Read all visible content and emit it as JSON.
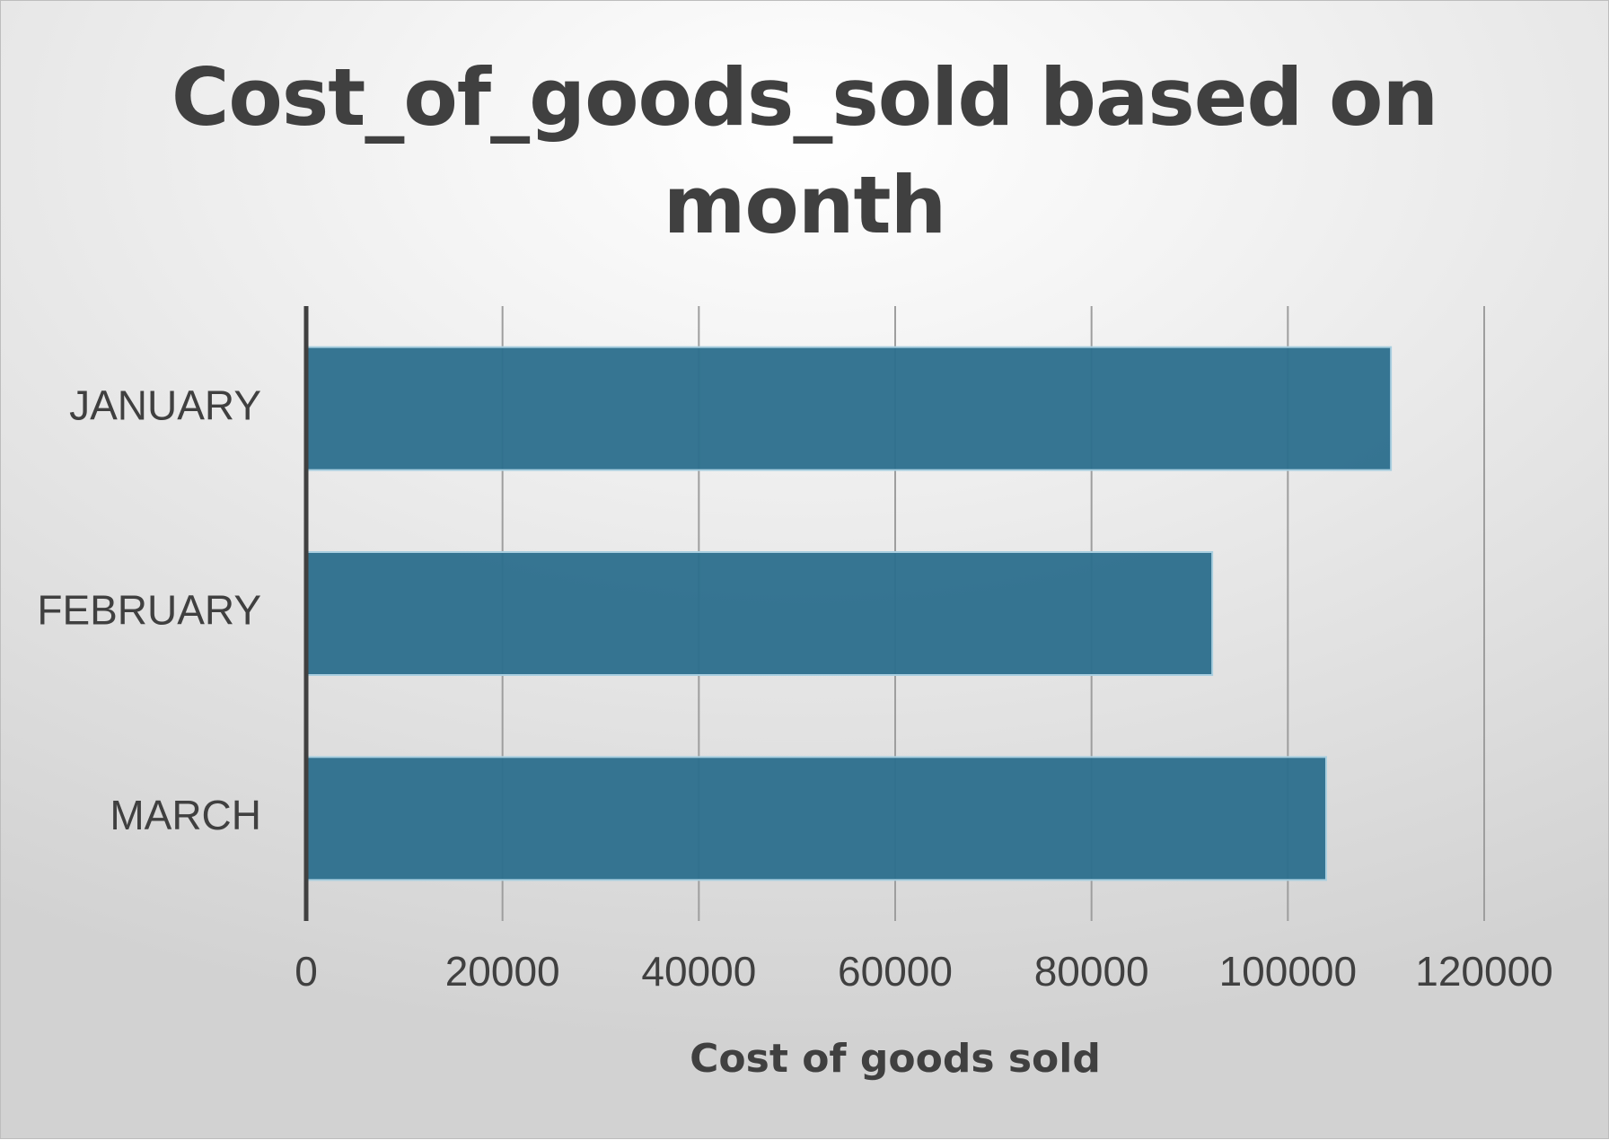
{
  "chart_data": {
    "type": "bar",
    "orientation": "horizontal",
    "title": "Cost_of_goods_sold based on month",
    "xlabel": "Cost of goods sold",
    "ylabel": "",
    "categories": [
      "JANUARY",
      "FEBRUARY",
      "MARCH"
    ],
    "values": [
      110500,
      92300,
      103900
    ],
    "xlim": [
      0,
      120000
    ],
    "xticks": [
      0,
      20000,
      40000,
      60000,
      80000,
      100000,
      120000
    ],
    "xtick_labels": [
      "0",
      "20000",
      "40000",
      "60000",
      "80000",
      "100000",
      "120000"
    ],
    "grid": "vertical",
    "legend": "none",
    "colors": {
      "bar": "#2e6f8e",
      "bar_outline": "#a9cfe0",
      "text": "#404040",
      "gridline": "#9e9e9e",
      "axis": "#404040"
    }
  }
}
